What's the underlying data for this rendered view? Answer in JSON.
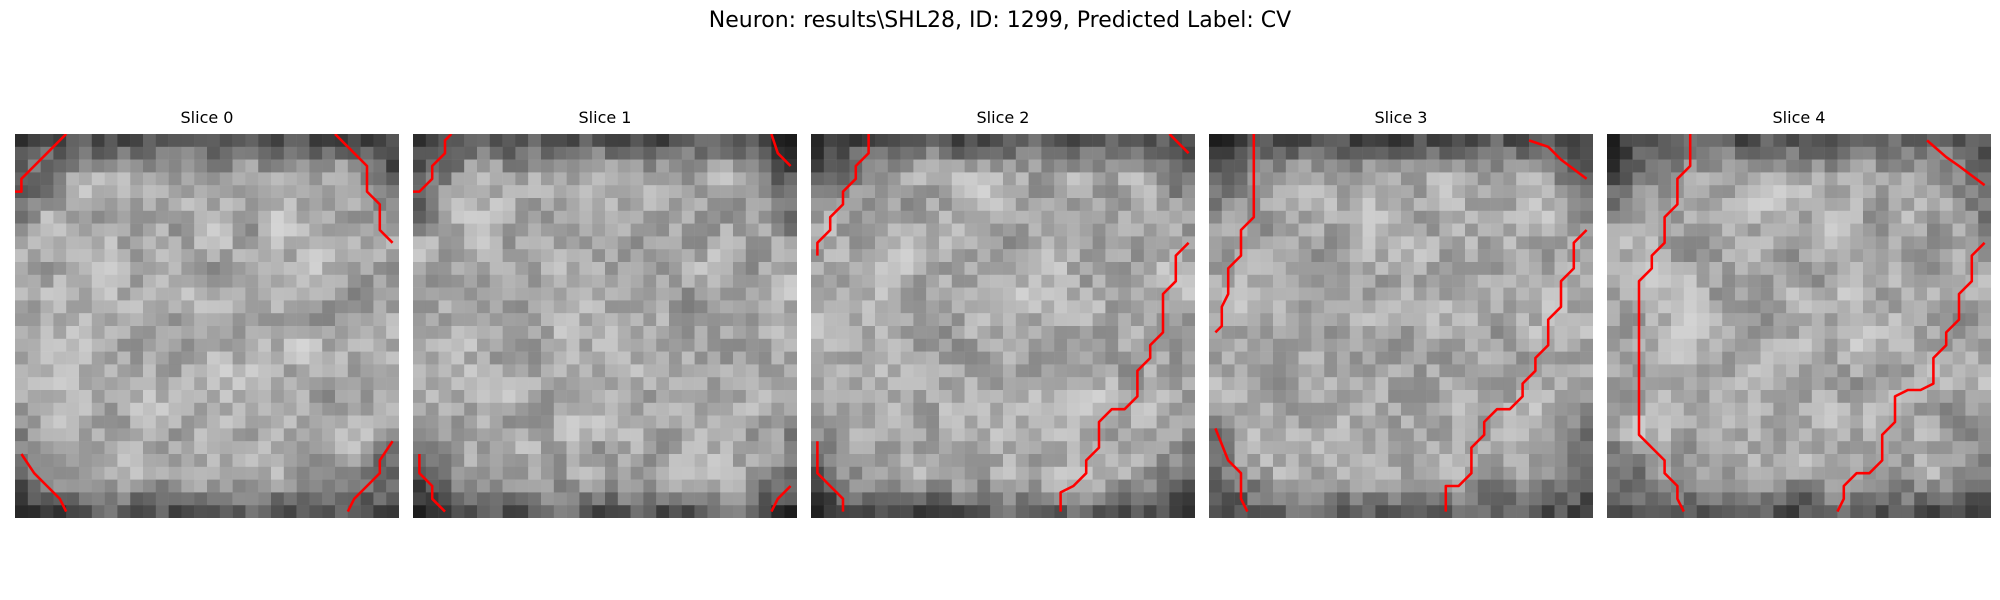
{
  "suptitle": "Neuron: results\\SHL28, ID: 1299, Predicted Label: CV",
  "contour_color": "#ff0000",
  "grid_size": 30,
  "slices": [
    {
      "title": "Slice 0",
      "seed": 11,
      "lines": [
        [
          [
            0,
            4.5
          ],
          [
            0.5,
            4.5
          ],
          [
            0.5,
            3.5
          ],
          [
            1.5,
            2.5
          ],
          [
            2.5,
            1.5
          ],
          [
            3.5,
            0.5
          ],
          [
            4,
            0
          ]
        ],
        [
          [
            25,
            0
          ],
          [
            25.5,
            0.5
          ],
          [
            26.5,
            1.5
          ],
          [
            27.5,
            2.5
          ],
          [
            27.5,
            4.5
          ],
          [
            28.5,
            5.5
          ],
          [
            28.5,
            7.5
          ],
          [
            29.5,
            8.5
          ]
        ],
        [
          [
            0.5,
            25
          ],
          [
            1.5,
            26.5
          ],
          [
            2.5,
            27.5
          ],
          [
            3.5,
            28.5
          ],
          [
            4,
            29.5
          ]
        ],
        [
          [
            29.5,
            24
          ],
          [
            28.5,
            25.5
          ],
          [
            28.5,
            26.5
          ],
          [
            27.5,
            27.5
          ],
          [
            26.5,
            28.5
          ],
          [
            26,
            29.5
          ]
        ]
      ]
    },
    {
      "title": "Slice 1",
      "seed": 23,
      "lines": [
        [
          [
            0,
            4.5
          ],
          [
            0.5,
            4.5
          ],
          [
            1.5,
            3.5
          ],
          [
            1.5,
            2.5
          ],
          [
            2.5,
            1.5
          ],
          [
            2.5,
            0.5
          ],
          [
            3,
            0
          ]
        ],
        [
          [
            28,
            0
          ],
          [
            28.5,
            1.5
          ],
          [
            29.5,
            2.5
          ]
        ],
        [
          [
            0.5,
            25
          ],
          [
            0.5,
            26.5
          ],
          [
            1.5,
            27.5
          ],
          [
            1.5,
            28.5
          ],
          [
            2.5,
            29.5
          ]
        ],
        [
          [
            29.5,
            27.5
          ],
          [
            28.5,
            28.5
          ],
          [
            28,
            29.5
          ]
        ]
      ]
    },
    {
      "title": "Slice 2",
      "seed": 37,
      "lines": [
        [
          [
            0.5,
            9.5
          ],
          [
            0.5,
            8.5
          ],
          [
            1.5,
            7.5
          ],
          [
            1.5,
            6.5
          ],
          [
            2.5,
            5.5
          ],
          [
            2.5,
            4.5
          ],
          [
            3.5,
            3.5
          ],
          [
            3.5,
            2.5
          ],
          [
            4.5,
            1.5
          ],
          [
            4.5,
            0
          ]
        ],
        [
          [
            28,
            0
          ],
          [
            28.5,
            0.5
          ],
          [
            29.5,
            1.5
          ]
        ],
        [
          [
            29.5,
            8.5
          ],
          [
            28.5,
            9.5
          ],
          [
            28.5,
            11.5
          ],
          [
            27.5,
            12.5
          ],
          [
            27.5,
            15.5
          ],
          [
            26.5,
            16.5
          ],
          [
            26.5,
            17.5
          ],
          [
            25.5,
            18.5
          ],
          [
            25.5,
            20.5
          ],
          [
            24.5,
            21.5
          ],
          [
            23.5,
            21.5
          ],
          [
            22.5,
            22.5
          ],
          [
            22.5,
            24.5
          ],
          [
            21.5,
            25.5
          ],
          [
            21.5,
            26.5
          ],
          [
            20.5,
            27.5
          ],
          [
            19.5,
            28
          ],
          [
            19.5,
            29.5
          ]
        ],
        [
          [
            0.5,
            24
          ],
          [
            0.5,
            26.5
          ],
          [
            1.5,
            27.5
          ],
          [
            2.5,
            28.5
          ],
          [
            2.5,
            29.5
          ]
        ]
      ]
    },
    {
      "title": "Slice 3",
      "seed": 53,
      "lines": [
        [
          [
            0.5,
            15.5
          ],
          [
            1,
            15
          ],
          [
            1,
            13.5
          ],
          [
            1.5,
            12.5
          ],
          [
            1.5,
            10.5
          ],
          [
            2.5,
            9.5
          ],
          [
            2.5,
            7.5
          ],
          [
            3.5,
            6.5
          ],
          [
            3.5,
            4.5
          ],
          [
            3.5,
            0
          ]
        ],
        [
          [
            25,
            0.5
          ],
          [
            26.5,
            1
          ],
          [
            27.5,
            2
          ],
          [
            29.5,
            3.5
          ]
        ],
        [
          [
            29.5,
            7.5
          ],
          [
            28.5,
            8.5
          ],
          [
            28.5,
            10.5
          ],
          [
            27.5,
            11.5
          ],
          [
            27.5,
            13.5
          ],
          [
            26.5,
            14.5
          ],
          [
            26.5,
            16.5
          ],
          [
            25.5,
            17.5
          ],
          [
            25.5,
            18.5
          ],
          [
            24.5,
            19.5
          ],
          [
            24.5,
            20.5
          ],
          [
            23.5,
            21.5
          ],
          [
            22.5,
            21.5
          ],
          [
            21.5,
            22.5
          ],
          [
            21.5,
            23.5
          ],
          [
            20.5,
            24.5
          ],
          [
            20.5,
            26.5
          ],
          [
            19.5,
            27.5
          ],
          [
            18.5,
            27.5
          ],
          [
            18.5,
            28.5
          ],
          [
            18.5,
            29.5
          ]
        ],
        [
          [
            0.5,
            23
          ],
          [
            1.5,
            25.5
          ],
          [
            2.5,
            26.5
          ],
          [
            2.5,
            28.5
          ],
          [
            3,
            29.5
          ]
        ]
      ]
    },
    {
      "title": "Slice 4",
      "seed": 71,
      "lines": [
        [
          [
            6.5,
            0
          ],
          [
            6.5,
            2.5
          ],
          [
            5.5,
            3.5
          ],
          [
            5.5,
            5.5
          ],
          [
            4.5,
            6.5
          ],
          [
            4.5,
            8.5
          ],
          [
            3.5,
            9.5
          ],
          [
            3.5,
            10.5
          ],
          [
            2.5,
            11.5
          ],
          [
            2.5,
            23.5
          ],
          [
            3.5,
            24.5
          ],
          [
            4.5,
            25.5
          ],
          [
            4.5,
            26.5
          ],
          [
            5.5,
            27.5
          ],
          [
            5.5,
            28.5
          ],
          [
            6,
            29.5
          ]
        ],
        [
          [
            25,
            0.5
          ],
          [
            26.5,
            1.8
          ],
          [
            27.5,
            2.5
          ],
          [
            29.5,
            4
          ]
        ],
        [
          [
            29.5,
            8.5
          ],
          [
            28.5,
            9.5
          ],
          [
            28.5,
            11.5
          ],
          [
            27.5,
            12.5
          ],
          [
            27.5,
            14.5
          ],
          [
            26.5,
            15.5
          ],
          [
            26.5,
            16.5
          ],
          [
            25.5,
            17.5
          ],
          [
            25.5,
            19.5
          ],
          [
            24.5,
            20
          ],
          [
            23.5,
            20
          ],
          [
            22.5,
            20.5
          ],
          [
            22.5,
            22.5
          ],
          [
            21.5,
            23.5
          ],
          [
            21.5,
            25.5
          ],
          [
            20.5,
            26.5
          ],
          [
            19.5,
            26.5
          ],
          [
            18.5,
            27.5
          ],
          [
            18.5,
            28.5
          ],
          [
            18,
            29.5
          ]
        ]
      ]
    }
  ]
}
